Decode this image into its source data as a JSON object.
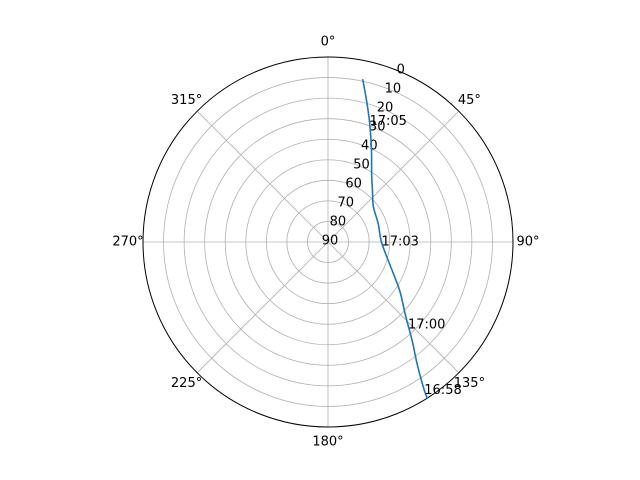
{
  "chart_data": {
    "type": "line",
    "projection": "polar",
    "theta_zero_location": "N",
    "theta_direction": "clockwise",
    "radial_axis": "elevation",
    "radial_unit_note": "elevation in degrees; 90 at center, 0 at outer edge",
    "r_range": [
      90,
      0
    ],
    "r_ticks": [
      0,
      10,
      20,
      30,
      40,
      50,
      60,
      70,
      80,
      90
    ],
    "theta_ticks": [
      0,
      45,
      90,
      135,
      180,
      225,
      270,
      315
    ],
    "theta_tick_labels": [
      "0°",
      "45°",
      "90°",
      "135°",
      "180°",
      "225°",
      "270°",
      "315°"
    ],
    "grid": true,
    "series": [
      {
        "color": "#1f77b4",
        "points": [
          {
            "azimuth": 147.5,
            "elevation": 0
          },
          {
            "azimuth": 147.0,
            "elevation": 4
          },
          {
            "azimuth": 144.0,
            "elevation": 16
          },
          {
            "azimuth": 139.5,
            "elevation": 27
          },
          {
            "azimuth": 133.5,
            "elevation": 38
          },
          {
            "azimuth": 124.0,
            "elevation": 48
          },
          {
            "azimuth": 110.0,
            "elevation": 58
          },
          {
            "azimuth": 90.0,
            "elevation": 64
          },
          {
            "azimuth": 70.0,
            "elevation": 64
          },
          {
            "azimuth": 52.0,
            "elevation": 62
          },
          {
            "azimuth": 41.0,
            "elevation": 57
          },
          {
            "azimuth": 33.0,
            "elevation": 51
          },
          {
            "azimuth": 25.0,
            "elevation": 40
          },
          {
            "azimuth": 19.0,
            "elevation": 28
          },
          {
            "azimuth": 15.0,
            "elevation": 18
          },
          {
            "azimuth": 12.0,
            "elevation": 9
          }
        ]
      }
    ],
    "annotations": [
      {
        "text": "16:58",
        "azimuth": 147.0,
        "elevation": 4
      },
      {
        "text": "17:00",
        "azimuth": 136.0,
        "elevation": 34
      },
      {
        "text": "17:03",
        "azimuth": 90.0,
        "elevation": 64
      },
      {
        "text": "17:05",
        "azimuth": 19.0,
        "elevation": 28
      }
    ]
  }
}
